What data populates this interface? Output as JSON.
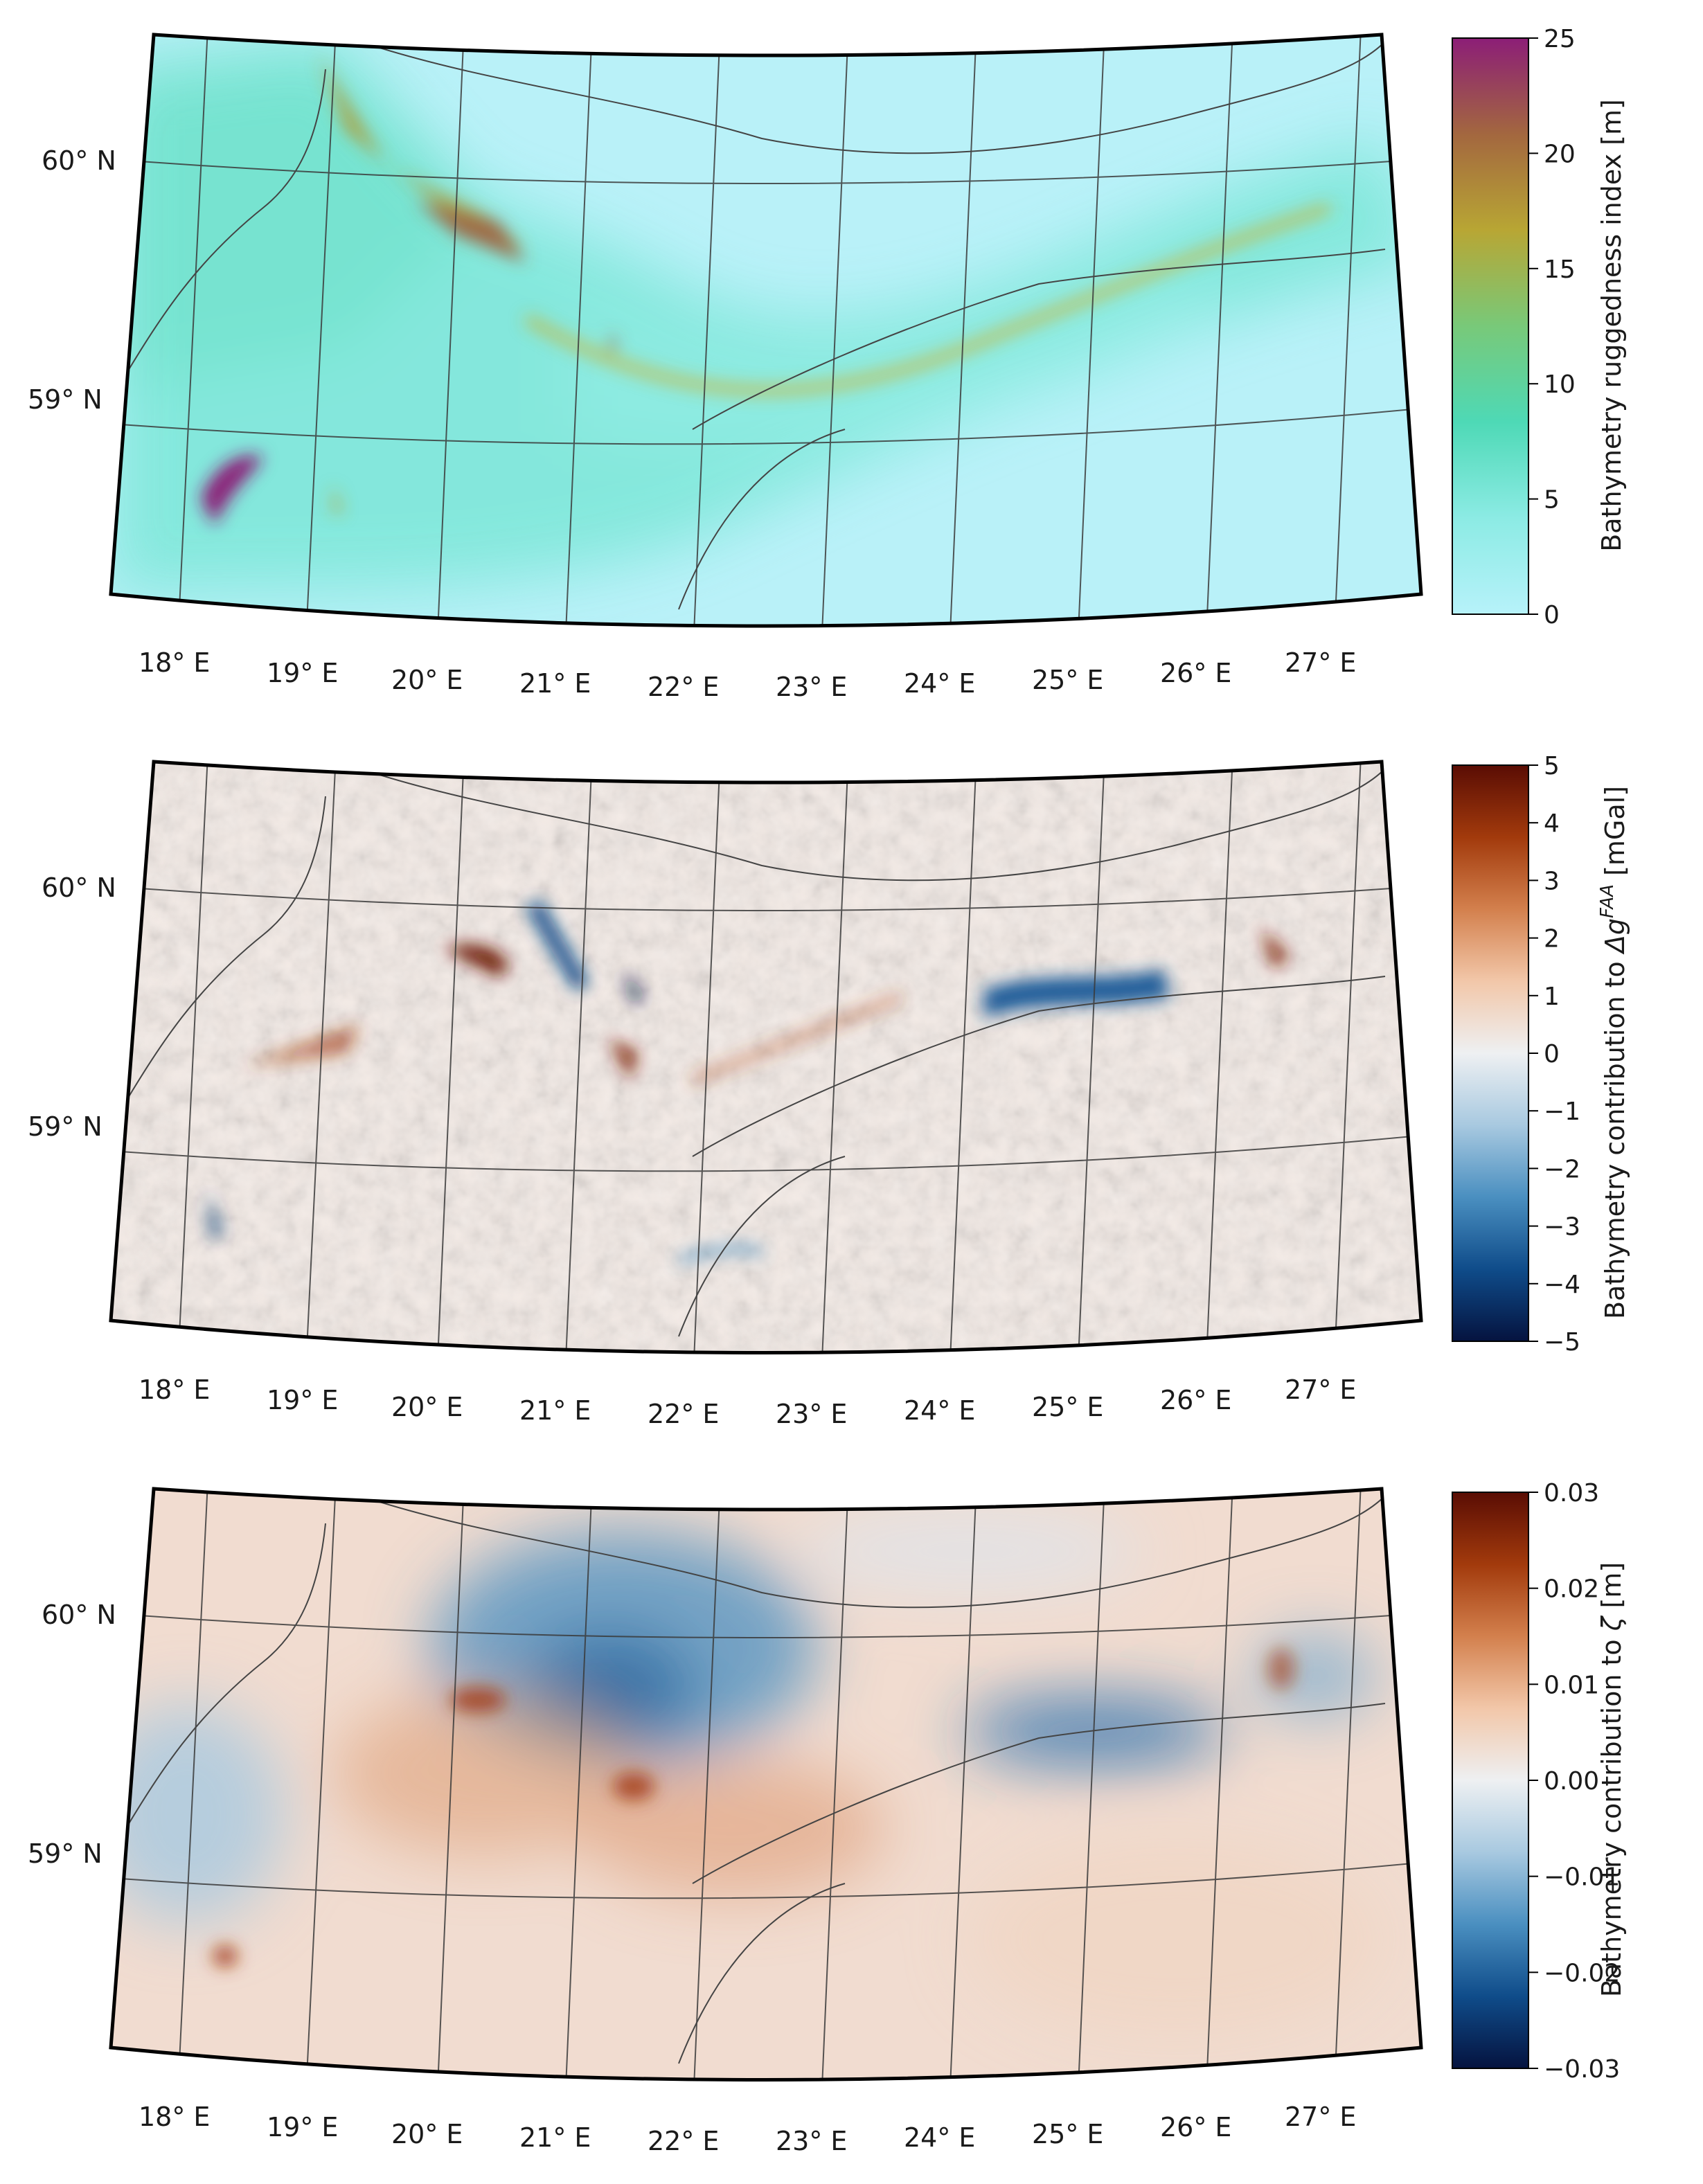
{
  "figure": {
    "longitude_labels": [
      "18° E",
      "19° E",
      "20° E",
      "21° E",
      "22° E",
      "23° E",
      "24° E",
      "25° E",
      "26° E",
      "27° E"
    ],
    "latitude_labels": [
      "60° N",
      "59° N"
    ],
    "panels": [
      {
        "id": "ruggedness",
        "colorbar": {
          "title": "Bathymetry ruggedness index [m]",
          "ticks": [
            "25",
            "20",
            "15",
            "10",
            "5",
            "0"
          ],
          "range": [
            0,
            25
          ],
          "colors": [
            "#b7f2fa",
            "#8cebe4",
            "#4ed9b6",
            "#78c979",
            "#b8a634",
            "#a3673f",
            "#8c1e77"
          ]
        }
      },
      {
        "id": "gravity",
        "colorbar": {
          "title_prefix": "Bathymetry contribution to ",
          "title_symbol": "Δg",
          "title_superscript": "FAA",
          "title_suffix": " [mGal]",
          "ticks": [
            "5",
            "4",
            "3",
            "2",
            "1",
            "0",
            "−1",
            "−2",
            "−3",
            "−4",
            "−5"
          ],
          "range": [
            -5,
            5
          ],
          "colors": [
            "#05133f",
            "#0f4c8a",
            "#4a8fc0",
            "#a8c9e0",
            "#eef0f2",
            "#f2c7a9",
            "#d3804d",
            "#a23a0c",
            "#5a0d04"
          ]
        }
      },
      {
        "id": "height",
        "colorbar": {
          "title_prefix": "Bathymetry contribution to ",
          "title_symbol": "ζ",
          "title_suffix": " [m]",
          "ticks": [
            "0.03",
            "0.02",
            "0.01",
            "0.00",
            "−0.01",
            "−0.02",
            "−0.03"
          ],
          "range": [
            -0.03,
            0.03
          ],
          "colors": [
            "#05133f",
            "#0f4c8a",
            "#4a8fc0",
            "#a8c9e0",
            "#eef0f2",
            "#f2c7a9",
            "#d3804d",
            "#a23a0c",
            "#5a0d04"
          ]
        }
      }
    ]
  }
}
